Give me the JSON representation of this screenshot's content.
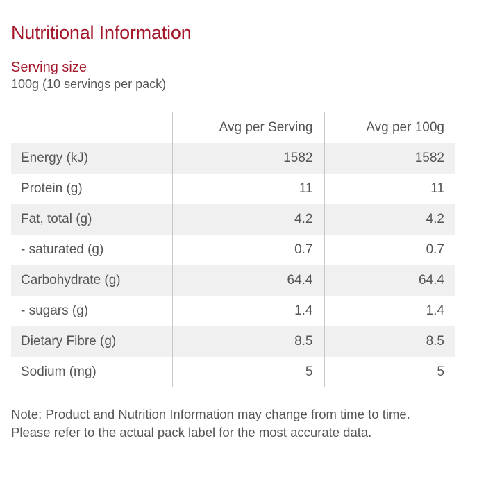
{
  "title": "Nutritional Information",
  "serving": {
    "heading": "Serving size",
    "value": "100g (10 servings per pack)"
  },
  "table": {
    "headers": [
      "",
      "Avg per Serving",
      "Avg per 100g"
    ],
    "rows": [
      {
        "label": "Energy (kJ)",
        "per_serving": "1582",
        "per_100g": "1582"
      },
      {
        "label": "Protein (g)",
        "per_serving": "11",
        "per_100g": "11"
      },
      {
        "label": "Fat, total (g)",
        "per_serving": "4.2",
        "per_100g": "4.2"
      },
      {
        "label": "- saturated (g)",
        "per_serving": "0.7",
        "per_100g": "0.7"
      },
      {
        "label": "Carbohydrate (g)",
        "per_serving": "64.4",
        "per_100g": "64.4"
      },
      {
        "label": "- sugars (g)",
        "per_serving": "1.4",
        "per_100g": "1.4"
      },
      {
        "label": "Dietary Fibre (g)",
        "per_serving": "8.5",
        "per_100g": "8.5"
      },
      {
        "label": "Sodium (mg)",
        "per_serving": "5",
        "per_100g": "5"
      }
    ]
  },
  "note": "Note: Product and Nutrition Information may change from time to time. Please refer to the actual pack label for the most accurate data.",
  "colors": {
    "accent": "#a3192b",
    "text": "#555555",
    "row_shade": "#f0f0f0",
    "divider": "#c8c8c8"
  }
}
